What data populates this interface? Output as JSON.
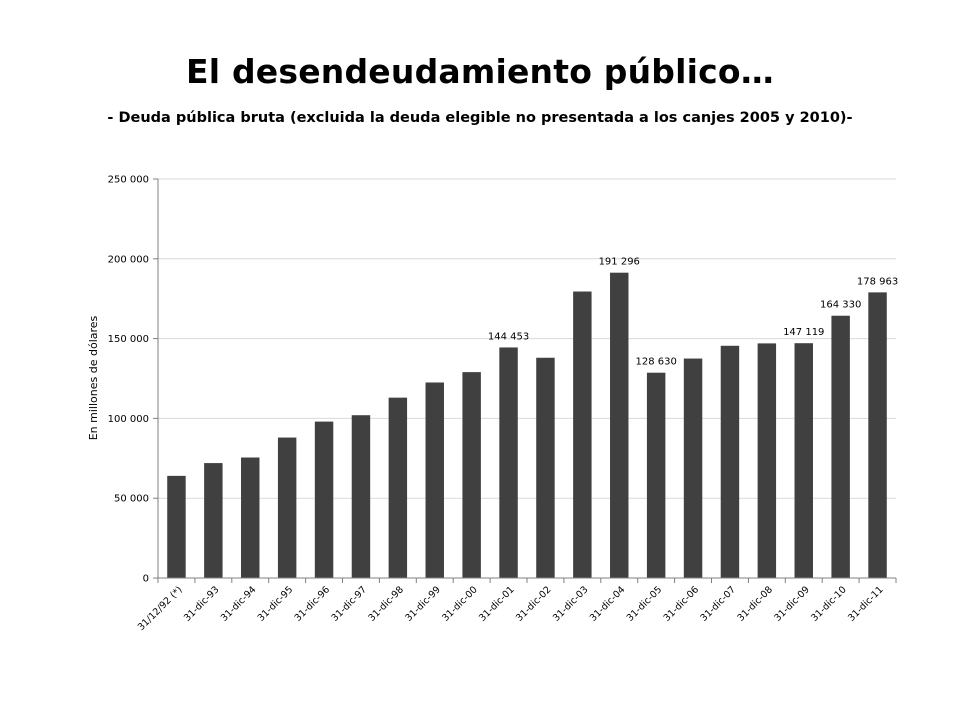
{
  "slide": {
    "title": "El desendeudamiento público…",
    "subtitle": "- Deuda pública bruta (excluida la deuda elegible no presentada a los canjes 2005 y 2010)-"
  },
  "chart_data": {
    "type": "bar",
    "ylabel": "En millones de dólares",
    "ylim": [
      0,
      250000
    ],
    "yticks": [
      0,
      50000,
      100000,
      150000,
      200000,
      250000
    ],
    "ytick_labels": [
      "0",
      "50 000",
      "100 000",
      "150 000",
      "200 000",
      "250 000"
    ],
    "grid": true,
    "bar_color": "#404040",
    "categories": [
      "31/12/92 (*)",
      "31-dic-93",
      "31-dic-94",
      "31-dic-95",
      "31-dic-96",
      "31-dic-97",
      "31-dic-98",
      "31-dic-99",
      "31-dic-00",
      "31-dic-01",
      "31-dic-02",
      "31-dic-03",
      "31-dic-04",
      "31-dic-05",
      "31-dic-06",
      "31-dic-07",
      "31-dic-08",
      "31-dic-09",
      "31-dic-10",
      "31-dic-11"
    ],
    "values": [
      64000,
      72000,
      75500,
      88000,
      98000,
      102000,
      113000,
      122500,
      129000,
      144453,
      138000,
      179500,
      191296,
      128630,
      137500,
      145500,
      147000,
      147119,
      164330,
      178963
    ],
    "data_labels": [
      "",
      "",
      "",
      "",
      "",
      "",
      "",
      "",
      "",
      "144 453",
      "",
      "",
      "191 296",
      "128 630",
      "",
      "",
      "",
      "147 119",
      "164 330",
      "178 963"
    ]
  }
}
